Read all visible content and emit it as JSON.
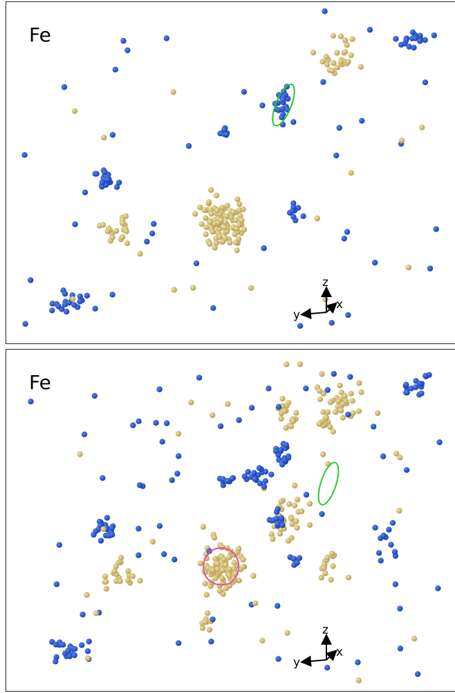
{
  "panels": [
    {
      "label": "Fe",
      "axes": {
        "z": "z",
        "y": "y",
        "x": "x"
      }
    },
    {
      "label": "Fe",
      "axes": {
        "z": "z",
        "y": "y",
        "x": "x"
      }
    }
  ]
}
